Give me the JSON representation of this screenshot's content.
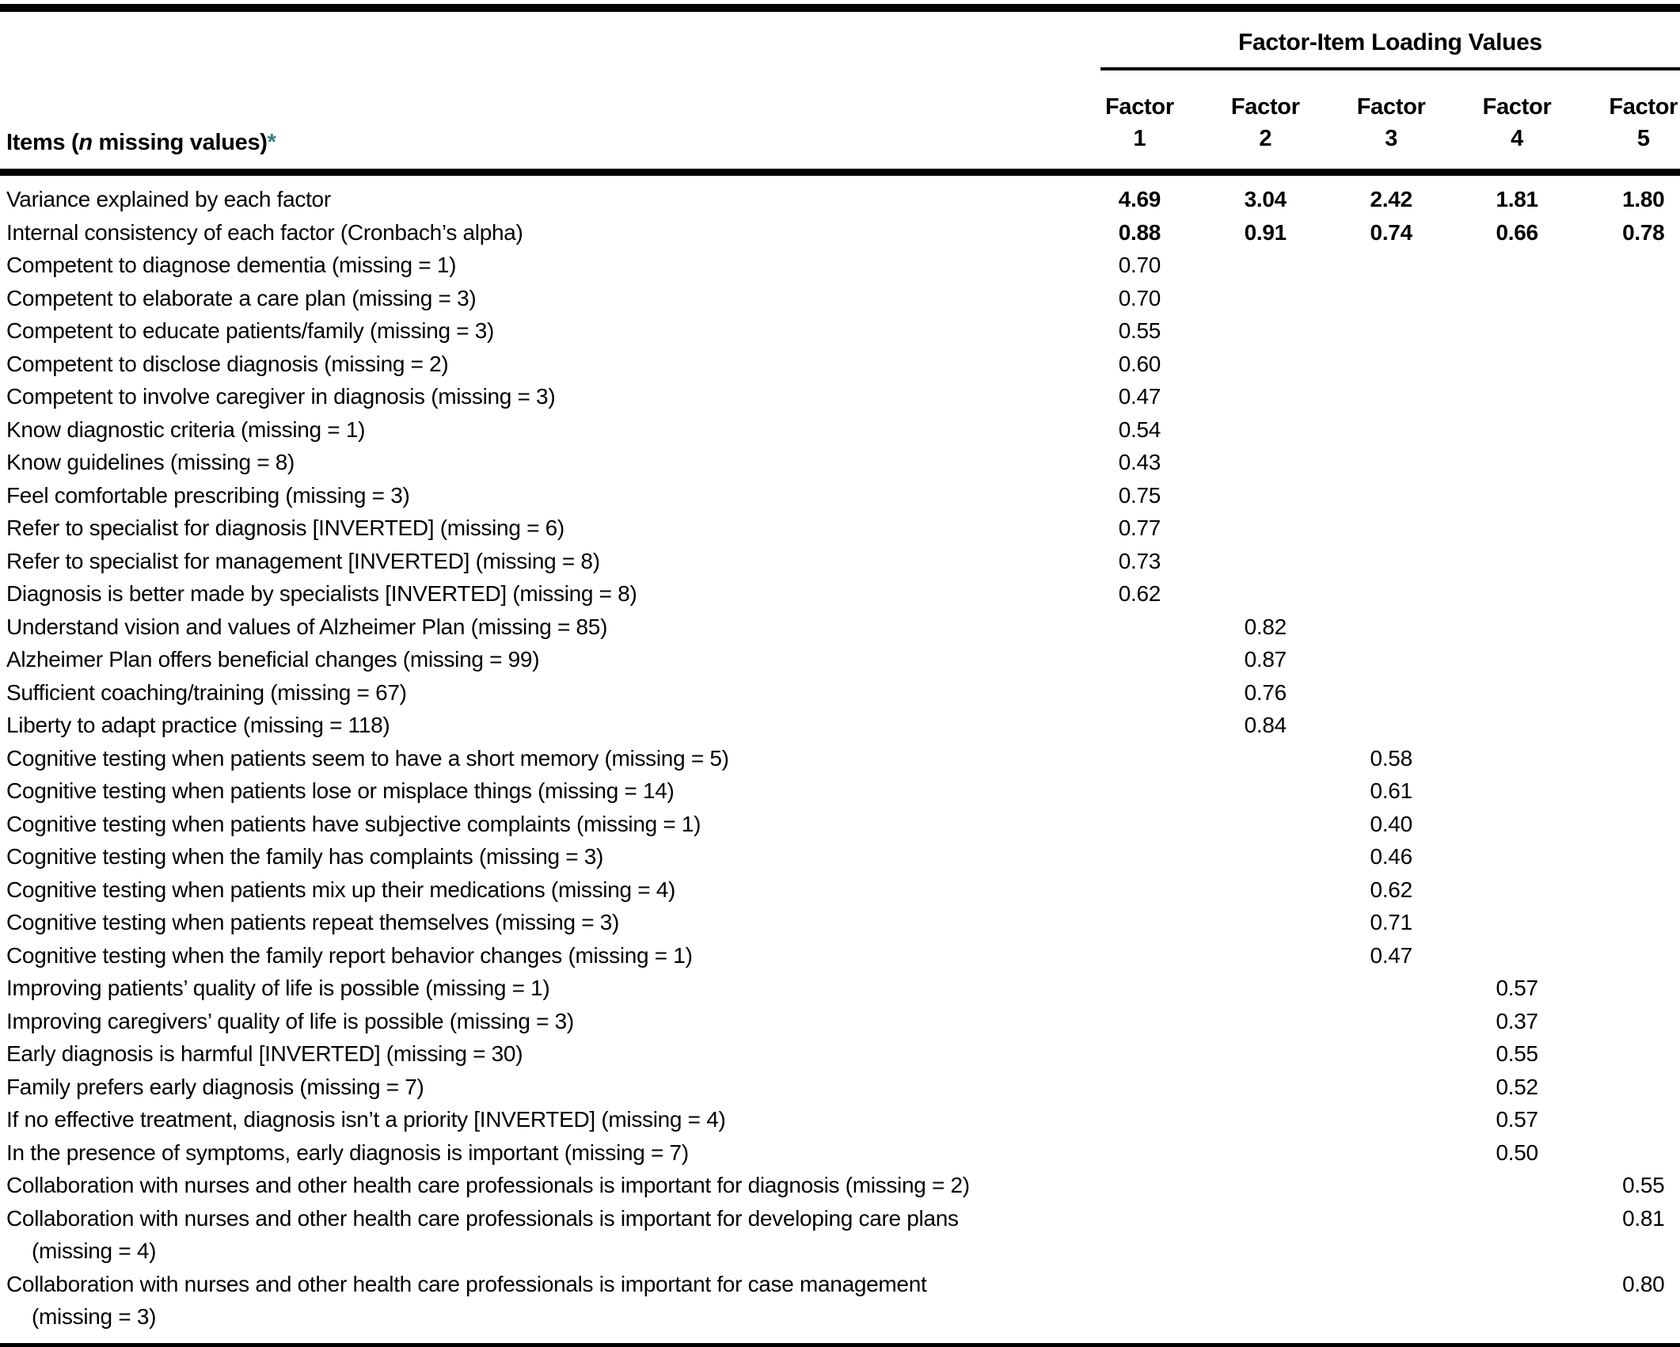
{
  "colors": {
    "asterisk": "#3C7B79"
  },
  "header": {
    "items_label": {
      "prefix": "Items (",
      "n": "n",
      "suffix": " missing values)",
      "asterisk": "*"
    },
    "span_label": "Factor-Item Loading Values",
    "factors": [
      {
        "word": "Factor",
        "num": "1"
      },
      {
        "word": "Factor",
        "num": "2"
      },
      {
        "word": "Factor",
        "num": "3"
      },
      {
        "word": "Factor",
        "num": "4"
      },
      {
        "word": "Factor",
        "num": "5"
      }
    ]
  },
  "rows": [
    {
      "label": "Variance explained by each factor",
      "values": [
        "4.69",
        "3.04",
        "2.42",
        "1.81",
        "1.80"
      ],
      "bold_values": true
    },
    {
      "label": "Internal consistency of each factor (Cronbach’s alpha)",
      "values": [
        "0.88",
        "0.91",
        "0.74",
        "0.66",
        "0.78"
      ],
      "bold_values": true
    },
    {
      "label": "Competent to diagnose dementia (missing = 1)",
      "values": [
        "0.70",
        "",
        "",
        "",
        ""
      ]
    },
    {
      "label": "Competent to elaborate a care plan (missing = 3)",
      "values": [
        "0.70",
        "",
        "",
        "",
        ""
      ]
    },
    {
      "label": "Competent to educate patients/family (missing = 3)",
      "values": [
        "0.55",
        "",
        "",
        "",
        ""
      ]
    },
    {
      "label": "Competent to disclose diagnosis (missing = 2)",
      "values": [
        "0.60",
        "",
        "",
        "",
        ""
      ]
    },
    {
      "label": "Competent to involve caregiver in diagnosis (missing = 3)",
      "values": [
        "0.47",
        "",
        "",
        "",
        ""
      ]
    },
    {
      "label": "Know diagnostic criteria (missing = 1)",
      "values": [
        "0.54",
        "",
        "",
        "",
        ""
      ]
    },
    {
      "label": "Know guidelines (missing = 8)",
      "values": [
        "0.43",
        "",
        "",
        "",
        ""
      ]
    },
    {
      "label": "Feel comfortable prescribing (missing = 3)",
      "values": [
        "0.75",
        "",
        "",
        "",
        ""
      ]
    },
    {
      "label": "Refer to specialist for diagnosis [INVERTED] (missing = 6)",
      "values": [
        "0.77",
        "",
        "",
        "",
        ""
      ]
    },
    {
      "label": "Refer to specialist for management [INVERTED] (missing = 8)",
      "values": [
        "0.73",
        "",
        "",
        "",
        ""
      ]
    },
    {
      "label": "Diagnosis is better made by specialists [INVERTED] (missing = 8)",
      "values": [
        "0.62",
        "",
        "",
        "",
        ""
      ]
    },
    {
      "label": "Understand vision and values of Alzheimer Plan (missing = 85)",
      "values": [
        "",
        "0.82",
        "",
        "",
        ""
      ]
    },
    {
      "label": "Alzheimer Plan offers beneficial changes (missing = 99)",
      "values": [
        "",
        "0.87",
        "",
        "",
        ""
      ]
    },
    {
      "label": "Sufficient coaching/training (missing = 67)",
      "values": [
        "",
        "0.76",
        "",
        "",
        ""
      ]
    },
    {
      "label": "Liberty to adapt practice (missing = 118)",
      "values": [
        "",
        "0.84",
        "",
        "",
        ""
      ]
    },
    {
      "label": "Cognitive testing when patients seem to have a short memory (missing = 5)",
      "values": [
        "",
        "",
        "0.58",
        "",
        ""
      ]
    },
    {
      "label": "Cognitive testing when patients lose or misplace things (missing = 14)",
      "values": [
        "",
        "",
        "0.61",
        "",
        ""
      ]
    },
    {
      "label": "Cognitive testing when patients have subjective complaints (missing = 1)",
      "values": [
        "",
        "",
        "0.40",
        "",
        ""
      ]
    },
    {
      "label": "Cognitive testing when the family has complaints (missing = 3)",
      "values": [
        "",
        "",
        "0.46",
        "",
        ""
      ]
    },
    {
      "label": "Cognitive testing when patients mix up their medications (missing = 4)",
      "values": [
        "",
        "",
        "0.62",
        "",
        ""
      ]
    },
    {
      "label": "Cognitive testing when patients repeat themselves (missing = 3)",
      "values": [
        "",
        "",
        "0.71",
        "",
        ""
      ]
    },
    {
      "label": "Cognitive testing when the family report behavior changes (missing = 1)",
      "values": [
        "",
        "",
        "0.47",
        "",
        ""
      ]
    },
    {
      "label": "Improving patients’ quality of life is possible (missing = 1)",
      "values": [
        "",
        "",
        "",
        "0.57",
        ""
      ]
    },
    {
      "label": "Improving caregivers’ quality of life is possible (missing = 3)",
      "values": [
        "",
        "",
        "",
        "0.37",
        ""
      ]
    },
    {
      "label": "Early diagnosis is harmful [INVERTED] (missing = 30)",
      "values": [
        "",
        "",
        "",
        "0.55",
        ""
      ]
    },
    {
      "label": "Family prefers early diagnosis (missing = 7)",
      "values": [
        "",
        "",
        "",
        "0.52",
        ""
      ]
    },
    {
      "label": "If no effective treatment, diagnosis isn’t a priority [INVERTED] (missing = 4)",
      "values": [
        "",
        "",
        "",
        "0.57",
        ""
      ]
    },
    {
      "label": "In the presence of symptoms, early diagnosis is important (missing = 7)",
      "values": [
        "",
        "",
        "",
        "0.50",
        ""
      ]
    },
    {
      "label": "Collaboration with nurses and other health care professionals is important for diagnosis (missing = 2)",
      "values": [
        "",
        "",
        "",
        "",
        "0.55"
      ]
    },
    {
      "label": "Collaboration with nurses and other health care professionals is important for developing care plans",
      "line2": "(missing = 4)",
      "values": [
        "",
        "",
        "",
        "",
        "0.81"
      ]
    },
    {
      "label": "Collaboration with nurses and other health care professionals is important for case management",
      "line2": "(missing = 3)",
      "values": [
        "",
        "",
        "",
        "",
        "0.80"
      ]
    }
  ]
}
